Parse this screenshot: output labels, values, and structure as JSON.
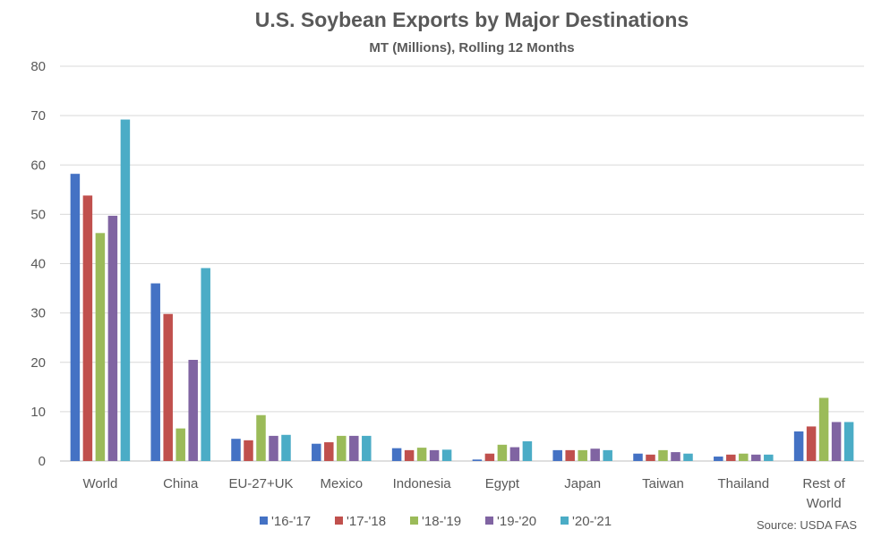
{
  "chart_data": {
    "type": "bar",
    "title": "U.S. Soybean Exports by Major Destinations",
    "subtitle": "MT (Millions), Rolling 12 Months",
    "xlabel": "",
    "ylabel": "",
    "ylim": [
      0,
      80
    ],
    "yticks": [
      0,
      10,
      20,
      30,
      40,
      50,
      60,
      70,
      80
    ],
    "grid": true,
    "legend_position": "bottom",
    "categories": [
      "World",
      "China",
      "EU-27+UK",
      "Mexico",
      "Indonesia",
      "Egypt",
      "Japan",
      "Taiwan",
      "Thailand",
      "Rest of World"
    ],
    "category_lines": [
      [
        "World"
      ],
      [
        "China"
      ],
      [
        "EU-27+UK"
      ],
      [
        "Mexico"
      ],
      [
        "Indonesia"
      ],
      [
        "Egypt"
      ],
      [
        "Japan"
      ],
      [
        "Taiwan"
      ],
      [
        "Thailand"
      ],
      [
        "Rest of",
        "World"
      ]
    ],
    "series": [
      {
        "name": "'16-'17",
        "color": "#4472C4",
        "values": [
          58.2,
          36.0,
          4.5,
          3.5,
          2.6,
          0.3,
          2.2,
          1.5,
          0.9,
          6.0
        ]
      },
      {
        "name": "'17-'18",
        "color": "#C0504D",
        "values": [
          53.8,
          29.8,
          4.2,
          3.8,
          2.2,
          1.5,
          2.2,
          1.3,
          1.3,
          7.0
        ]
      },
      {
        "name": "'18-'19",
        "color": "#9BBB59",
        "values": [
          46.2,
          6.6,
          9.3,
          5.1,
          2.7,
          3.3,
          2.2,
          2.2,
          1.5,
          12.8
        ]
      },
      {
        "name": "'19-'20",
        "color": "#8064A2",
        "values": [
          49.7,
          20.5,
          5.1,
          5.1,
          2.2,
          2.8,
          2.5,
          1.8,
          1.3,
          7.9
        ]
      },
      {
        "name": "'20-'21",
        "color": "#4BACC6",
        "values": [
          69.2,
          39.1,
          5.3,
          5.1,
          2.3,
          4.0,
          2.2,
          1.5,
          1.3,
          7.9
        ]
      }
    ],
    "source": "Source: USDA FAS"
  }
}
